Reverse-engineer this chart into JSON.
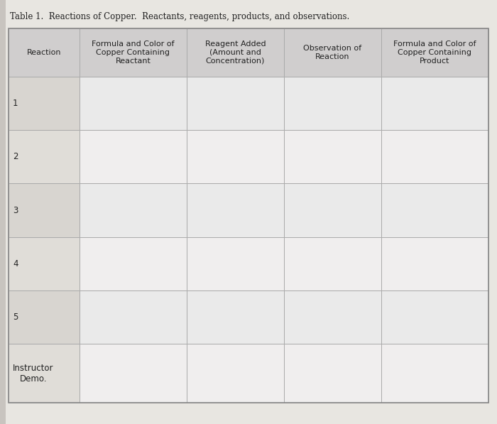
{
  "title": "Table 1.  Reactions of Copper.  Reactants, reagents, products, and observations.",
  "title_fontsize": 8.5,
  "col_headers": [
    "Reaction",
    "Formula and Color of\nCopper Containing\nReactant",
    "Reagent Added\n(Amount and\nConcentration)",
    "Observation of\nReaction",
    "Formula and Color of\nCopper Containing\nProduct"
  ],
  "row_labels": [
    "1",
    "2",
    "3",
    "4",
    "5",
    "Instructor\nDemo."
  ],
  "header_bg": "#d0cece",
  "col0_bg": "#dcdcdc",
  "row_bg": "#eaeaea",
  "row_bg2": "#f0eeee",
  "table_bg": "#f5f3f0",
  "border_color": "#aaaaaa",
  "text_color": "#222222",
  "header_fontsize": 8.0,
  "cell_fontsize": 8.5,
  "fig_bg": "#c8c4bf",
  "page_bg": "#e8e6e2"
}
